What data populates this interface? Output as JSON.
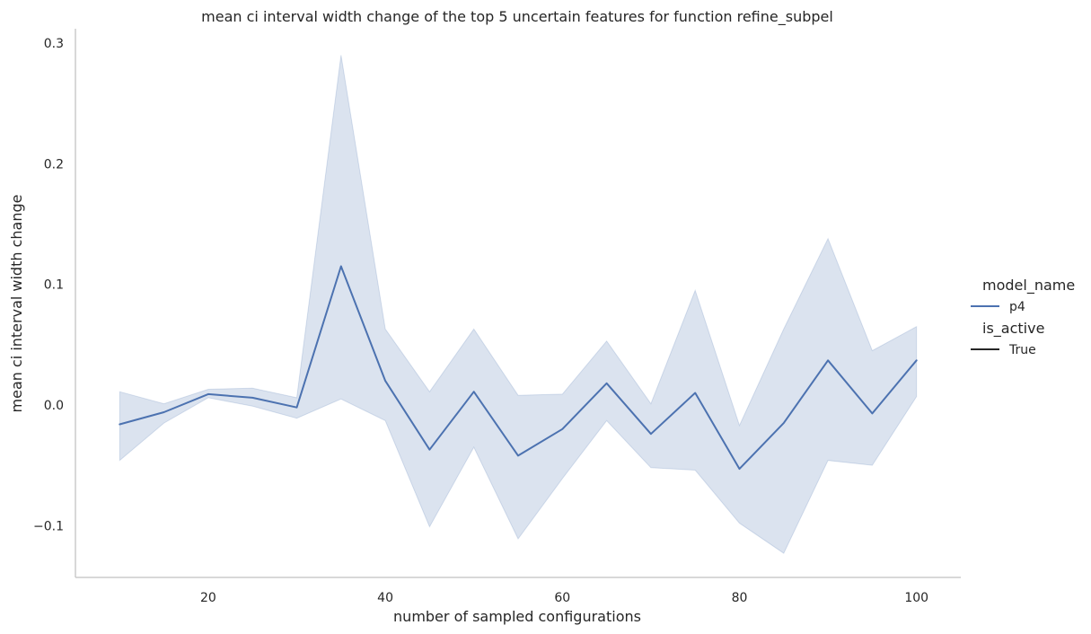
{
  "chart_data": {
    "type": "line",
    "title": "mean ci interval width change of the top 5 uncertain features for function refine_subpel",
    "xlabel": "number of sampled configurations",
    "ylabel": "mean ci interval width change",
    "xlim": [
      5,
      105
    ],
    "ylim": [
      -0.143,
      0.312
    ],
    "xticks": [
      20,
      40,
      60,
      80,
      100
    ],
    "xtick_labels": [
      "20",
      "40",
      "60",
      "80",
      "100"
    ],
    "yticks": [
      -0.1,
      0.0,
      0.1,
      0.2,
      0.3
    ],
    "ytick_labels": [
      "−0.1",
      "0.0",
      "0.1",
      "0.2",
      "0.3"
    ],
    "grid": false,
    "legend_position": "right",
    "legend": {
      "hue_title": "model_name",
      "hue_entries": [
        {
          "label": "p4",
          "color": "#4c72b0"
        }
      ],
      "style_title": "is_active",
      "style_entries": [
        {
          "label": "True",
          "color": "#262626"
        }
      ]
    },
    "x": [
      10,
      15,
      20,
      25,
      30,
      35,
      40,
      45,
      50,
      55,
      60,
      65,
      70,
      75,
      80,
      85,
      90,
      95,
      100
    ],
    "series": [
      {
        "name": "p4",
        "color": "#4c72b0",
        "values": [
          -0.016,
          -0.006,
          0.009,
          0.006,
          -0.002,
          0.115,
          0.02,
          -0.037,
          0.011,
          -0.042,
          -0.02,
          0.018,
          -0.024,
          0.01,
          -0.053,
          -0.015,
          0.037,
          -0.007,
          0.037
        ],
        "ci_low": [
          -0.046,
          -0.015,
          0.006,
          -0.001,
          -0.011,
          0.005,
          -0.013,
          -0.101,
          -0.035,
          -0.111,
          -0.061,
          -0.013,
          -0.052,
          -0.054,
          -0.098,
          -0.123,
          -0.046,
          -0.05,
          0.007
        ],
        "ci_high": [
          0.011,
          0.001,
          0.013,
          0.014,
          0.006,
          0.29,
          0.063,
          0.011,
          0.063,
          0.008,
          0.009,
          0.053,
          0.001,
          0.095,
          -0.017,
          0.063,
          0.138,
          0.045,
          0.065
        ]
      }
    ]
  }
}
